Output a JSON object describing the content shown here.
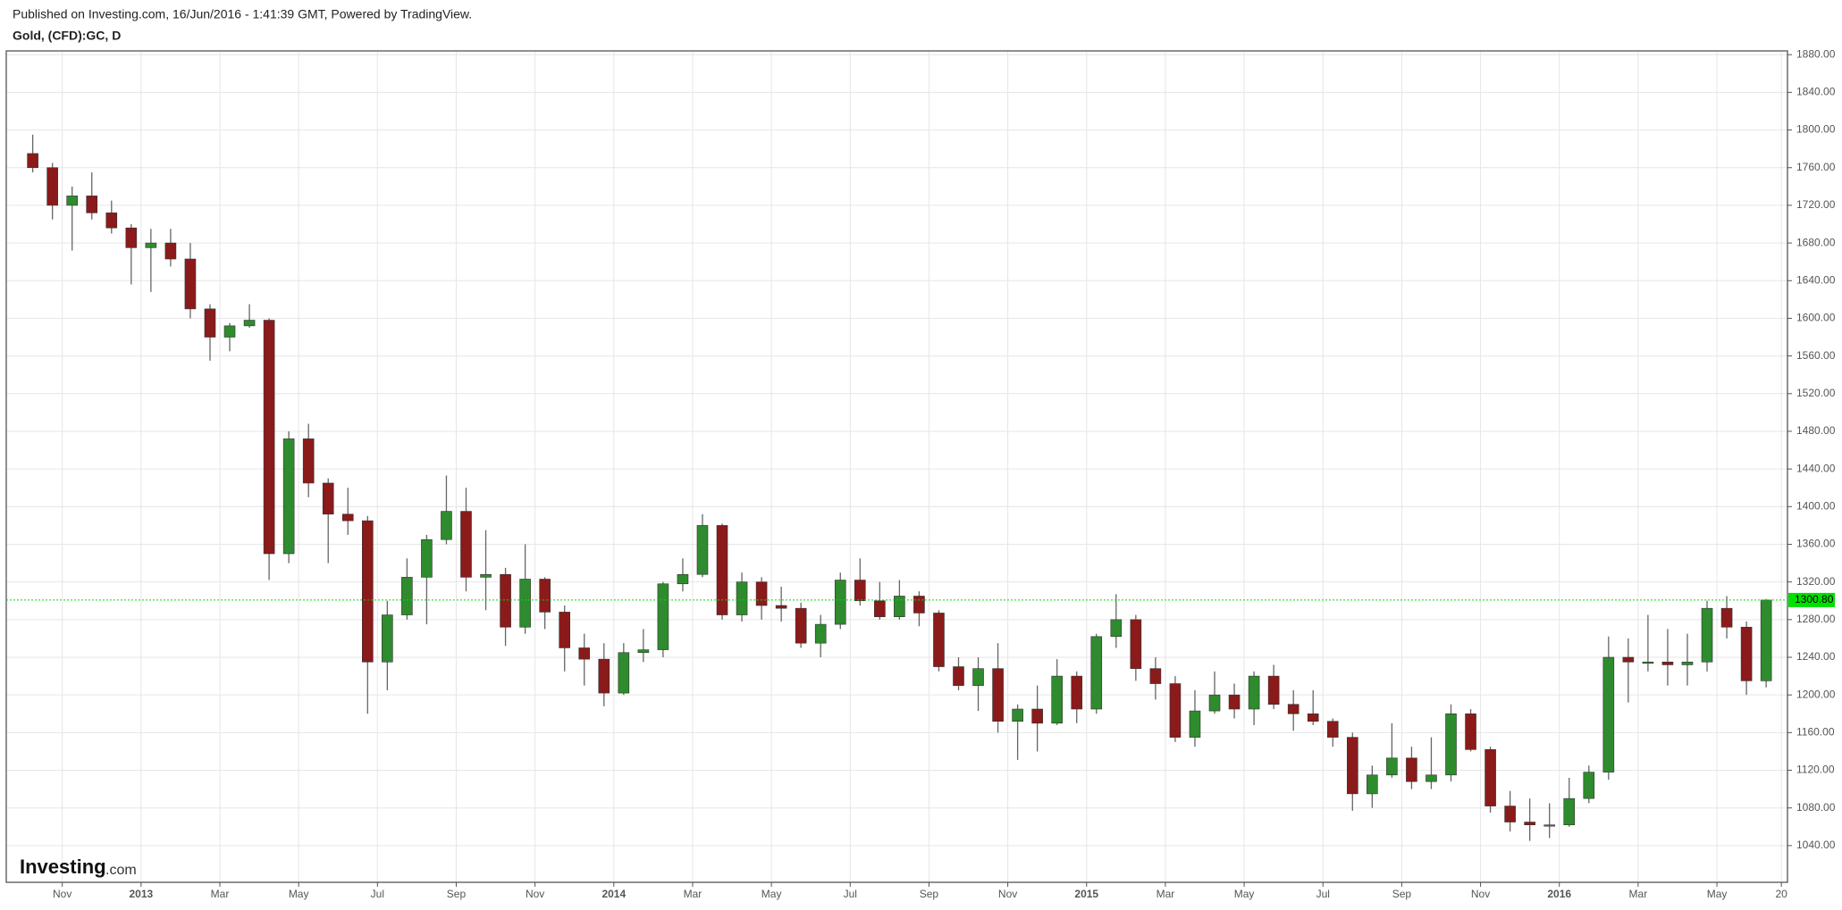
{
  "chart_data": {
    "type": "candlestick",
    "title": "Published on Investing.com, 16/Jun/2016 - 1:41:39 GMT, Powered by TradingView.",
    "subtitle": "Gold, (CFD):GC, D",
    "categories": [
      null,
      null,
      "Nov",
      null,
      null,
      null,
      "2013",
      null,
      null,
      null,
      "Mar",
      null,
      null,
      null,
      "May",
      null,
      null,
      null,
      "Jul",
      null,
      null,
      null,
      "Sep",
      null,
      null,
      null,
      "Nov",
      null,
      null,
      null,
      "2014",
      null,
      null,
      null,
      "Mar",
      null,
      null,
      null,
      "May",
      null,
      null,
      null,
      "Jul",
      null,
      null,
      null,
      "Sep",
      null,
      null,
      null,
      "Nov",
      null,
      null,
      null,
      "2015",
      null,
      null,
      null,
      "Mar",
      null,
      null,
      null,
      "May",
      null,
      null,
      null,
      "Jul",
      null,
      null,
      null,
      "Sep",
      null,
      null,
      null,
      "Nov",
      null,
      null,
      null,
      "2016",
      null,
      null,
      null,
      "Mar",
      null,
      null,
      null,
      "May",
      null,
      null,
      "20"
    ],
    "open": [
      1775,
      1760,
      1720,
      1730,
      1712,
      1696,
      1675,
      1680,
      1663,
      1610,
      1580,
      1592,
      1598,
      1350,
      1472,
      1425,
      1392,
      1385,
      1235,
      1285,
      1325,
      1365,
      1395,
      1325,
      1328,
      1272,
      1323,
      1288,
      1250,
      1238,
      1202,
      1245,
      1248,
      1318,
      1328,
      1380,
      1285,
      1320,
      1295,
      1292,
      1255,
      1275,
      1322,
      1300,
      1283,
      1305,
      1287,
      1230,
      1210,
      1228,
      1172,
      1185,
      1170,
      1220,
      1185,
      1262,
      1280,
      1228,
      1212,
      1155,
      1183,
      1200,
      1185,
      1220,
      1190,
      1180,
      1172,
      1155,
      1095,
      1115,
      1133,
      1108,
      1115,
      1180,
      1142,
      1082,
      1065,
      1062,
      1062,
      1090,
      1118,
      1240,
      1235,
      1235,
      1232,
      1235,
      1292,
      1272,
      1215,
      null
    ],
    "high": [
      1795,
      1765,
      1740,
      1755,
      1725,
      1700,
      1695,
      1695,
      1680,
      1615,
      1595,
      1615,
      1600,
      1480,
      1488,
      1430,
      1420,
      1390,
      1300,
      1345,
      1370,
      1433,
      1420,
      1375,
      1335,
      1360,
      1325,
      1295,
      1265,
      1255,
      1255,
      1270,
      1320,
      1345,
      1392,
      1382,
      1330,
      1325,
      1315,
      1298,
      1285,
      1330,
      1345,
      1320,
      1322,
      1310,
      1290,
      1240,
      1240,
      1255,
      1190,
      1210,
      1238,
      1225,
      1265,
      1307,
      1285,
      1240,
      1220,
      1205,
      1225,
      1212,
      1225,
      1232,
      1205,
      1205,
      1175,
      1160,
      1125,
      1170,
      1145,
      1155,
      1190,
      1185,
      1145,
      1098,
      1090,
      1085,
      1112,
      1125,
      1262,
      1260,
      1285,
      1270,
      1265,
      1300,
      1305,
      1278,
      1302,
      null
    ],
    "low": [
      1755,
      1705,
      1672,
      1705,
      1690,
      1636,
      1628,
      1655,
      1600,
      1555,
      1565,
      1590,
      1322,
      1340,
      1410,
      1340,
      1370,
      1180,
      1205,
      1280,
      1275,
      1360,
      1310,
      1290,
      1252,
      1265,
      1270,
      1225,
      1210,
      1188,
      1200,
      1235,
      1240,
      1310,
      1325,
      1280,
      1278,
      1280,
      1278,
      1250,
      1240,
      1270,
      1295,
      1280,
      1280,
      1273,
      1225,
      1205,
      1183,
      1160,
      1131,
      1140,
      1168,
      1170,
      1180,
      1250,
      1215,
      1195,
      1150,
      1145,
      1180,
      1175,
      1168,
      1185,
      1162,
      1168,
      1145,
      1077,
      1080,
      1112,
      1100,
      1100,
      1108,
      1140,
      1075,
      1055,
      1045,
      1048,
      1060,
      1085,
      1110,
      1192,
      1225,
      1210,
      1210,
      1225,
      1260,
      1200,
      1208,
      null
    ],
    "close": [
      1760,
      1720,
      1730,
      1712,
      1696,
      1675,
      1680,
      1663,
      1610,
      1580,
      1592,
      1598,
      1350,
      1472,
      1425,
      1392,
      1385,
      1235,
      1285,
      1325,
      1365,
      1395,
      1325,
      1328,
      1272,
      1323,
      1288,
      1250,
      1238,
      1202,
      1245,
      1248,
      1318,
      1328,
      1380,
      1285,
      1320,
      1295,
      1292,
      1255,
      1275,
      1322,
      1300,
      1283,
      1305,
      1287,
      1230,
      1210,
      1228,
      1172,
      1185,
      1170,
      1220,
      1185,
      1262,
      1280,
      1228,
      1212,
      1155,
      1183,
      1200,
      1185,
      1220,
      1190,
      1180,
      1172,
      1155,
      1095,
      1115,
      1133,
      1108,
      1115,
      1180,
      1142,
      1082,
      1065,
      1062,
      1062,
      1090,
      1118,
      1240,
      1235,
      1235,
      1232,
      1235,
      1292,
      1272,
      1215,
      1300.8,
      null
    ],
    "up_color": "#2e8b2e",
    "down_color": "#8b1a1a",
    "wick_color": "#666666",
    "ylim": [
      1001,
      1884
    ],
    "yticks": [
      {
        "value": 1040,
        "label": "1040.00"
      },
      {
        "value": 1080,
        "label": "1080.00"
      },
      {
        "value": 1120,
        "label": "1120.00"
      },
      {
        "value": 1160,
        "label": "1160.00"
      },
      {
        "value": 1200,
        "label": "1200.00"
      },
      {
        "value": 1240,
        "label": "1240.00"
      },
      {
        "value": 1280,
        "label": "1280.00"
      },
      {
        "value": 1320,
        "label": "1320.00"
      },
      {
        "value": 1360,
        "label": "1360.00"
      },
      {
        "value": 1400,
        "label": "1400.00"
      },
      {
        "value": 1440,
        "label": "1440.00"
      },
      {
        "value": 1480,
        "label": "1480.00"
      },
      {
        "value": 1520,
        "label": "1520.00"
      },
      {
        "value": 1560,
        "label": "1560.00"
      },
      {
        "value": 1600,
        "label": "1600.00"
      },
      {
        "value": 1640,
        "label": "1640.00"
      },
      {
        "value": 1680,
        "label": "1680.00"
      },
      {
        "value": 1720,
        "label": "1720.00"
      },
      {
        "value": 1760,
        "label": "1760.00"
      },
      {
        "value": 1800,
        "label": "1800.00"
      },
      {
        "value": 1840,
        "label": "1840.00"
      },
      {
        "value": 1880,
        "label": "1880.00"
      }
    ],
    "grid": true,
    "last_price": {
      "value": 1300.8,
      "label": "1300.80"
    },
    "last_price_color": "#00e000"
  },
  "logo": {
    "brand": "Investing",
    "suffix": ".com"
  }
}
